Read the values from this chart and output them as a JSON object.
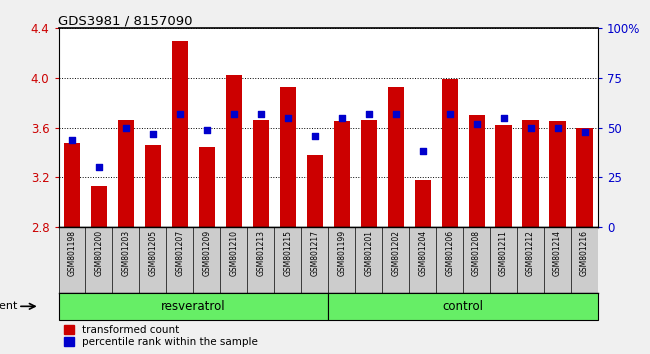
{
  "title": "GDS3981 / 8157090",
  "samples": [
    "GSM801198",
    "GSM801200",
    "GSM801203",
    "GSM801205",
    "GSM801207",
    "GSM801209",
    "GSM801210",
    "GSM801213",
    "GSM801215",
    "GSM801217",
    "GSM801199",
    "GSM801201",
    "GSM801202",
    "GSM801204",
    "GSM801206",
    "GSM801208",
    "GSM801211",
    "GSM801212",
    "GSM801214",
    "GSM801216"
  ],
  "transformed_count": [
    3.48,
    3.13,
    3.66,
    3.46,
    4.3,
    3.44,
    4.02,
    3.66,
    3.93,
    3.38,
    3.65,
    3.66,
    3.93,
    3.18,
    3.99,
    3.7,
    3.62,
    3.66,
    3.65,
    3.6
  ],
  "percentile_rank": [
    44,
    30,
    50,
    47,
    57,
    49,
    57,
    57,
    55,
    46,
    55,
    57,
    57,
    38,
    57,
    52,
    55,
    50,
    50,
    48
  ],
  "resveratrol_count": 10,
  "ylim_left": [
    2.8,
    4.4
  ],
  "ylim_right": [
    0,
    100
  ],
  "yticks_left": [
    2.8,
    3.2,
    3.6,
    4.0,
    4.4
  ],
  "yticks_right": [
    0,
    25,
    50,
    75,
    100
  ],
  "ytick_labels_right": [
    "0",
    "25",
    "50",
    "75",
    "100%"
  ],
  "bar_color": "#cc0000",
  "dot_color": "#0000cc",
  "grid_color": "#000000",
  "resveratrol_label": "resveratrol",
  "control_label": "control",
  "agent_label": "agent",
  "legend_bar_label": "transformed count",
  "legend_dot_label": "percentile rank within the sample",
  "bar_width": 0.6,
  "bottom_band_color": "#66ee66",
  "tick_area_color": "#cccccc",
  "xlabel_color": "#cc0000",
  "ylabel_right_color": "#0000cc",
  "plot_bg_color": "#ffffff"
}
